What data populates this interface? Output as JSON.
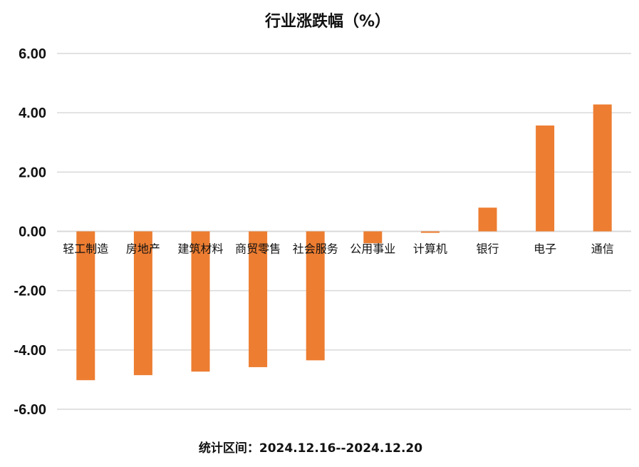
{
  "chart_data": {
    "type": "bar",
    "title": "行业涨跌幅（%）",
    "categories": [
      "轻工制造",
      "房地产",
      "建筑材料",
      "商贸零售",
      "社会服务",
      "公用事业",
      "计算机",
      "银行",
      "电子",
      "通信"
    ],
    "series": [
      {
        "values": [
          -5.02,
          -4.85,
          -4.73,
          -4.58,
          -4.35,
          -0.4,
          -0.05,
          0.8,
          3.57,
          4.28
        ]
      }
    ],
    "ylim": [
      -6,
      6
    ],
    "yticks": [
      "6.00",
      "4.00",
      "2.00",
      "0.00",
      "-2.00",
      "-4.00",
      "-6.00"
    ],
    "grid": true,
    "bar_color": "#ED7D31",
    "xlabel": "",
    "ylabel": ""
  },
  "footer": {
    "text": "统计区间：2024.12.16--2024.12.20"
  }
}
